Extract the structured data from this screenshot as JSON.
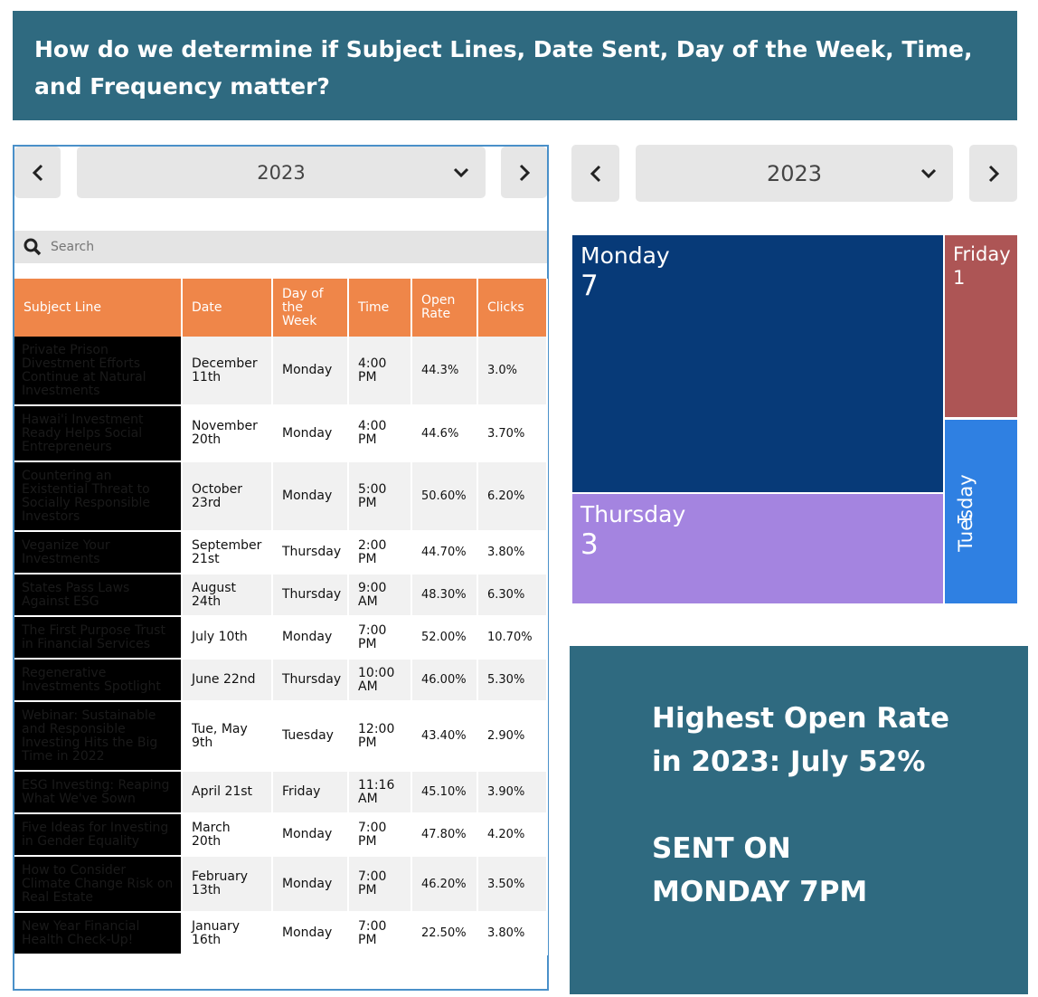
{
  "banner": {
    "line1": "How do we determine if Subject Lines, Date Sent, Day of the Week, Time,",
    "line2": "and Frequency matter?"
  },
  "left_widget": {
    "year": "2023",
    "search_placeholder": "Search",
    "columns": [
      "Subject Line",
      "Date",
      "Day of the Week",
      "Time",
      "Open Rate",
      "Clicks"
    ],
    "rows": [
      {
        "subject": "Private Prison Divestment Efforts Continue at Natural Investments",
        "date": "December 11th",
        "day": "Monday",
        "time": "4:00 PM",
        "open_rate": "44.3%",
        "clicks": "3.0%"
      },
      {
        "subject": "Hawai'i Investment Ready Helps Social Entrepreneurs",
        "date": "November 20th",
        "day": "Monday",
        "time": "4:00 PM",
        "open_rate": "44.6%",
        "clicks": "3.70%"
      },
      {
        "subject": "Countering an Existential Threat to Socially Responsible Investors",
        "date": "October 23rd",
        "day": "Monday",
        "time": "5:00 PM",
        "open_rate": "50.60%",
        "clicks": "6.20%"
      },
      {
        "subject": "Veganize Your Investments",
        "date": "September 21st",
        "day": "Thursday",
        "time": "2:00 PM",
        "open_rate": "44.70%",
        "clicks": "3.80%"
      },
      {
        "subject": "States Pass Laws Against ESG",
        "date": "August 24th",
        "day": "Thursday",
        "time": "9:00 AM",
        "open_rate": "48.30%",
        "clicks": "6.30%"
      },
      {
        "subject": "The First Purpose Trust in Financial Services",
        "date": "July 10th",
        "day": "Monday",
        "time": "7:00 PM",
        "open_rate": "52.00%",
        "clicks": "10.70%"
      },
      {
        "subject": "Regenerative Investments Spotlight",
        "date": "June 22nd",
        "day": "Thursday",
        "time": "10:00 AM",
        "open_rate": "46.00%",
        "clicks": "5.30%"
      },
      {
        "subject": "Webinar: Sustainable and Responsible Investing Hits the Big Time in 2022",
        "date": "Tue, May 9th",
        "day": "Tuesday",
        "time": "12:00 PM",
        "open_rate": "43.40%",
        "clicks": "2.90%"
      },
      {
        "subject": "ESG Investing: Reaping What We've Sown",
        "date": "April 21st",
        "day": "Friday",
        "time": "11:16 AM",
        "open_rate": "45.10%",
        "clicks": "3.90%"
      },
      {
        "subject": "Five Ideas for Investing in Gender Equality",
        "date": "March 20th",
        "day": "Monday",
        "time": "7:00 PM",
        "open_rate": "47.80%",
        "clicks": "4.20%"
      },
      {
        "subject": "How to Consider Climate Change Risk on Real Estate",
        "date": "February 13th",
        "day": "Monday",
        "time": "7:00 PM",
        "open_rate": "46.20%",
        "clicks": "3.50%"
      },
      {
        "subject": "New Year Financial Health Check-Up!",
        "date": "January 16th",
        "day": "Monday",
        "time": "7:00 PM",
        "open_rate": "22.50%",
        "clicks": "3.80%"
      }
    ]
  },
  "right_widget": {
    "year": "2023",
    "treemap": [
      {
        "label": "Monday",
        "value": "7",
        "color": "#073a78"
      },
      {
        "label": "Thursday",
        "value": "3",
        "color": "#a484e0"
      },
      {
        "label": "Friday",
        "value": "1",
        "color": "#ad5555"
      },
      {
        "label": "Tuesday",
        "value": "1",
        "color": "#2f80e2"
      }
    ]
  },
  "highlight": {
    "line1": "Highest Open Rate",
    "line2": "in 2023: July 52%",
    "line3": "SENT ON",
    "line4": "MONDAY 7PM"
  },
  "colors": {
    "banner_bg": "#2f6a80",
    "header_orange": "#ef8649",
    "widget_border": "#4a90c9"
  }
}
